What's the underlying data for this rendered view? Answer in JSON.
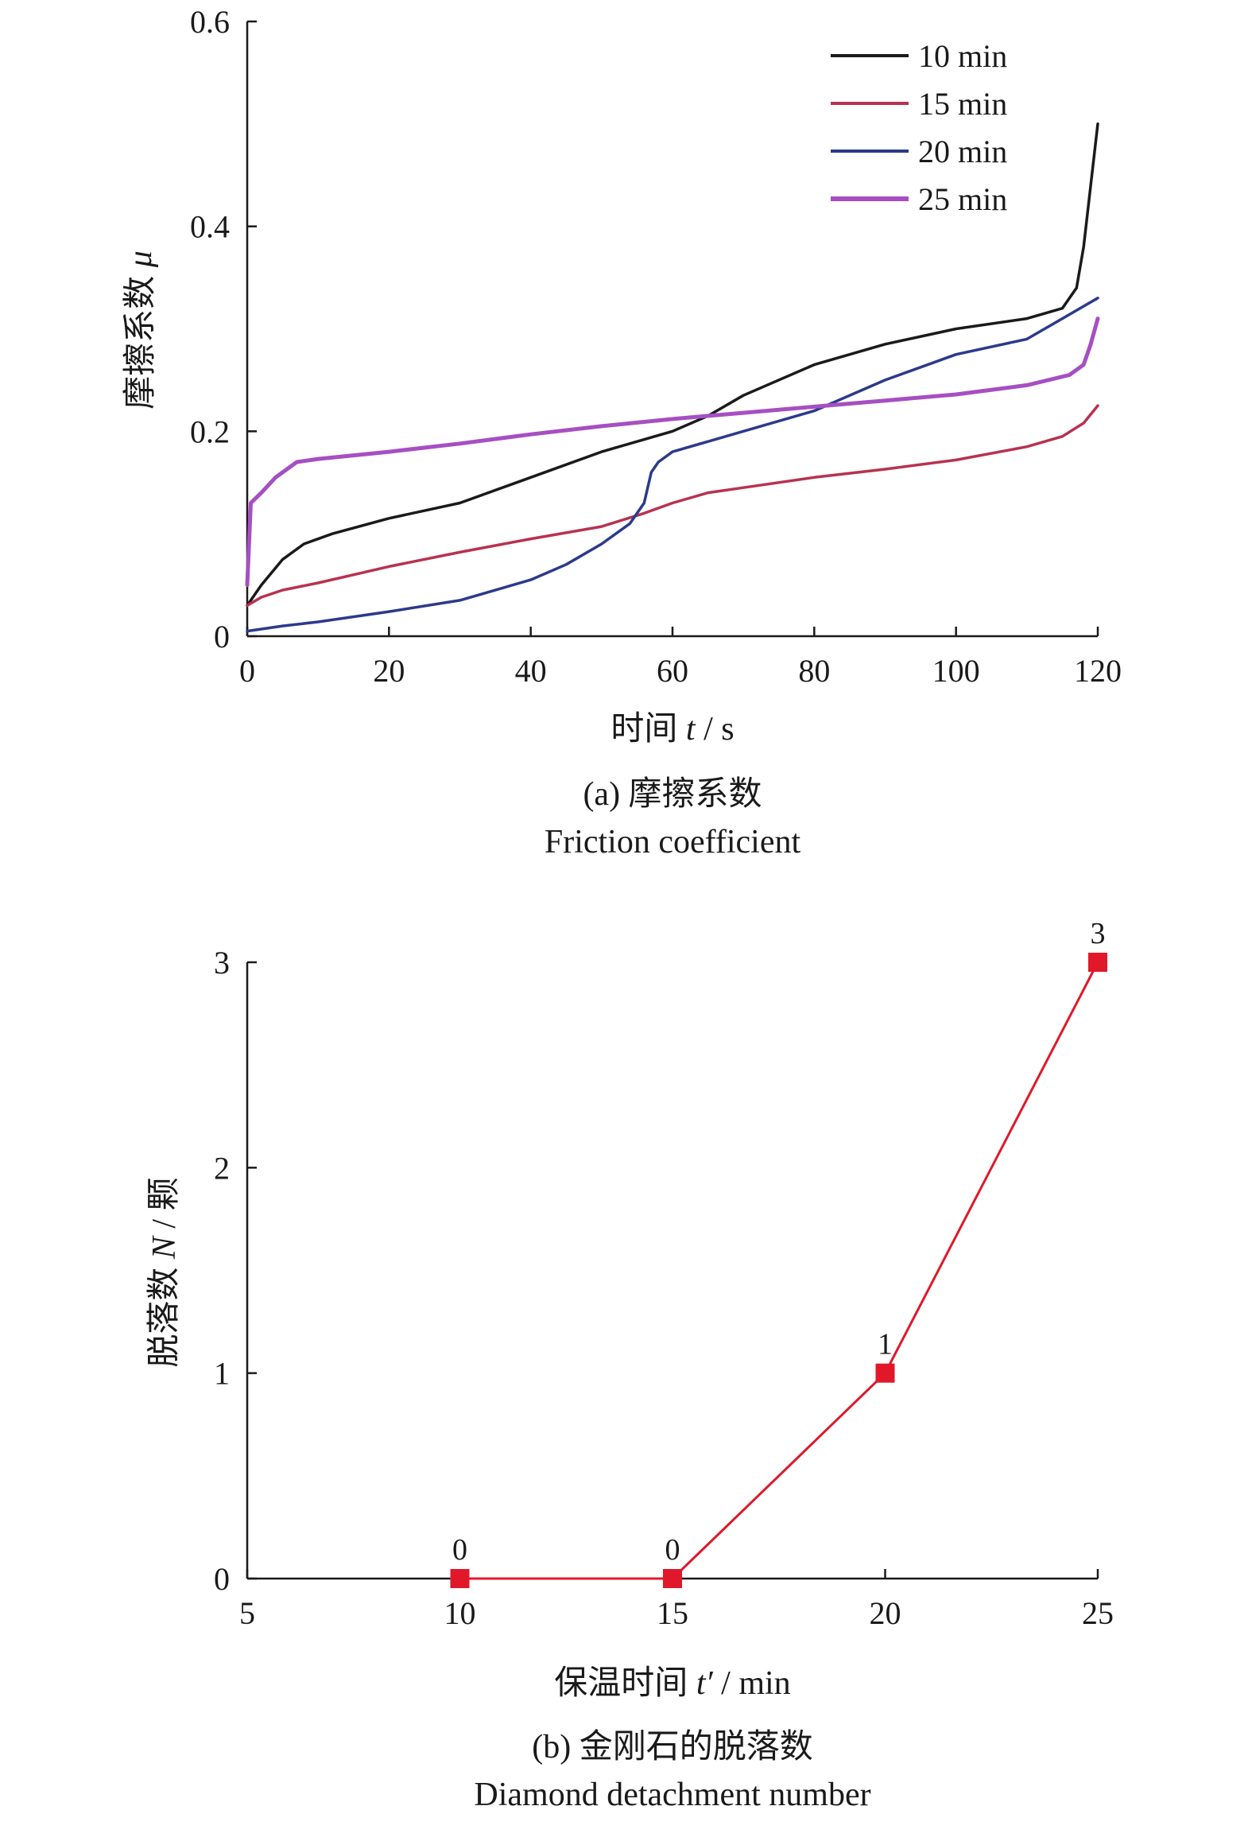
{
  "chart_data": [
    {
      "id": "a",
      "type": "line",
      "xlabel_prefix": "时间 ",
      "xlabel_var": "t",
      "xlabel_suffix": " / s",
      "ylabel_prefix": "摩擦系数 ",
      "ylabel_var": "μ",
      "xlim": [
        0,
        120
      ],
      "ylim": [
        0,
        0.6
      ],
      "x_ticks": [
        "0",
        "20",
        "40",
        "60",
        "80",
        "100",
        "120"
      ],
      "y_ticks": [
        "0",
        "0.2",
        "0.4",
        "0.6"
      ],
      "grid": false,
      "legend_position": "top-right",
      "caption_line1": "(a) 摩擦系数",
      "caption_line2": "Friction coefficient",
      "series": [
        {
          "name": "10 min",
          "color": "#1a1a1a",
          "x": [
            0,
            2,
            5,
            8,
            12,
            20,
            30,
            40,
            50,
            60,
            65,
            70,
            80,
            90,
            100,
            110,
            115,
            117,
            118,
            119,
            120
          ],
          "y": [
            0.03,
            0.05,
            0.075,
            0.09,
            0.1,
            0.115,
            0.13,
            0.155,
            0.18,
            0.2,
            0.215,
            0.235,
            0.265,
            0.285,
            0.3,
            0.31,
            0.32,
            0.34,
            0.38,
            0.44,
            0.5
          ]
        },
        {
          "name": "15 min",
          "color": "#b83250",
          "x": [
            0,
            2,
            5,
            10,
            20,
            30,
            40,
            50,
            56,
            60,
            65,
            70,
            80,
            90,
            100,
            110,
            115,
            118,
            120
          ],
          "y": [
            0.03,
            0.038,
            0.045,
            0.052,
            0.068,
            0.082,
            0.095,
            0.107,
            0.12,
            0.13,
            0.14,
            0.145,
            0.155,
            0.163,
            0.172,
            0.185,
            0.195,
            0.208,
            0.225
          ]
        },
        {
          "name": "20 min",
          "color": "#2c3a8c",
          "x": [
            0,
            5,
            10,
            20,
            30,
            40,
            45,
            50,
            54,
            56,
            57,
            58,
            60,
            70,
            80,
            90,
            100,
            110,
            115,
            120
          ],
          "y": [
            0.005,
            0.01,
            0.014,
            0.024,
            0.035,
            0.055,
            0.07,
            0.09,
            0.11,
            0.13,
            0.16,
            0.17,
            0.18,
            0.2,
            0.22,
            0.25,
            0.275,
            0.29,
            0.31,
            0.33
          ]
        },
        {
          "name": "25 min",
          "color": "#a64fc2",
          "x": [
            0,
            0.5,
            2,
            4,
            7,
            10,
            20,
            30,
            40,
            50,
            60,
            70,
            80,
            90,
            100,
            110,
            116,
            118,
            119,
            120
          ],
          "y": [
            0.05,
            0.13,
            0.14,
            0.155,
            0.17,
            0.173,
            0.18,
            0.188,
            0.197,
            0.205,
            0.212,
            0.218,
            0.224,
            0.23,
            0.236,
            0.245,
            0.255,
            0.265,
            0.285,
            0.31
          ]
        }
      ]
    },
    {
      "id": "b",
      "type": "line",
      "xlabel_prefix": "保温时间 ",
      "xlabel_var": "t′",
      "xlabel_suffix": " / min",
      "ylabel_prefix": "脱落数 ",
      "ylabel_var": "N",
      "ylabel_suffix": " / 颗",
      "xlim": [
        5,
        25
      ],
      "ylim": [
        0,
        3
      ],
      "x_ticks": [
        "5",
        "10",
        "15",
        "20",
        "25"
      ],
      "y_ticks": [
        "0",
        "1",
        "2",
        "3"
      ],
      "grid": false,
      "caption_line1": "(b) 金刚石的脱落数",
      "caption_line2": "Diamond detachment number",
      "series": [
        {
          "color": "#e0182a",
          "x": [
            10,
            15,
            20,
            25
          ],
          "y": [
            0,
            0,
            1,
            3
          ],
          "labels": [
            "0",
            "0",
            "1",
            "3"
          ]
        }
      ]
    }
  ]
}
